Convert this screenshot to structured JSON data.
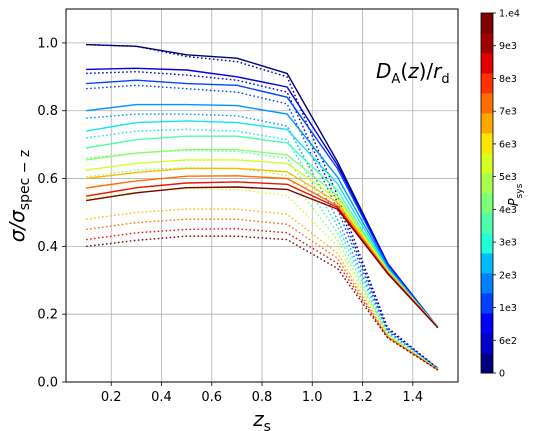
{
  "chart_data": {
    "type": "line",
    "annotation": "D_A(z)/r_d",
    "xlabel": "z_s",
    "ylabel": "σ/σ_spec − z",
    "xlim": [
      0.02,
      1.58
    ],
    "ylim": [
      0.0,
      1.1
    ],
    "xticks": [
      "0.2",
      "0.4",
      "0.6",
      "0.8",
      "1.0",
      "1.2",
      "1.4"
    ],
    "yticks": [
      "0.0",
      "0.2",
      "0.4",
      "0.6",
      "0.8",
      "1.0"
    ],
    "grid": true,
    "x": [
      0.1,
      0.3,
      0.5,
      0.7,
      0.9,
      1.1,
      1.3,
      1.5
    ],
    "colorbar": {
      "label": "P_sys",
      "ticks": [
        "0",
        "6e2",
        "1e3",
        "2e3",
        "3e3",
        "4e3",
        "5e3",
        "6e3",
        "7e3",
        "8e3",
        "9e3",
        "1.e4"
      ],
      "colors": [
        "#00007f",
        "#0000c8",
        "#0000ff",
        "#0040ff",
        "#0080ff",
        "#00bcff",
        "#20ffd7",
        "#4dffaa",
        "#7dff7a",
        "#aaff4d",
        "#d7ff20",
        "#ffe500",
        "#ffa800",
        "#ff6d00",
        "#ff3000",
        "#e30000",
        "#a00000",
        "#7f0000"
      ]
    },
    "series_solid": [
      {
        "color": "#00007f",
        "values": [
          0.995,
          0.99,
          0.965,
          0.955,
          0.91,
          0.65,
          0.35,
          0.16
        ]
      },
      {
        "color": "#0000d4",
        "values": [
          0.922,
          0.925,
          0.92,
          0.9,
          0.87,
          0.64,
          0.35,
          0.16
        ]
      },
      {
        "color": "#0044ff",
        "values": [
          0.88,
          0.89,
          0.88,
          0.875,
          0.84,
          0.63,
          0.345,
          0.16
        ]
      },
      {
        "color": "#0094ff",
        "values": [
          0.8,
          0.818,
          0.818,
          0.815,
          0.79,
          0.605,
          0.34,
          0.16
        ]
      },
      {
        "color": "#18e1ee",
        "values": [
          0.74,
          0.765,
          0.77,
          0.765,
          0.745,
          0.585,
          0.335,
          0.16
        ]
      },
      {
        "color": "#4dffaa",
        "values": [
          0.69,
          0.715,
          0.725,
          0.725,
          0.705,
          0.565,
          0.33,
          0.16
        ]
      },
      {
        "color": "#8cff6b",
        "values": [
          0.655,
          0.675,
          0.685,
          0.685,
          0.67,
          0.55,
          0.33,
          0.16
        ]
      },
      {
        "color": "#d0ff27",
        "values": [
          0.625,
          0.645,
          0.655,
          0.655,
          0.645,
          0.54,
          0.33,
          0.16
        ]
      },
      {
        "color": "#ffb900",
        "values": [
          0.6,
          0.618,
          0.63,
          0.63,
          0.62,
          0.53,
          0.325,
          0.16
        ]
      },
      {
        "color": "#ff6d00",
        "values": [
          0.572,
          0.593,
          0.607,
          0.608,
          0.6,
          0.52,
          0.325,
          0.16
        ]
      },
      {
        "color": "#e61400",
        "values": [
          0.548,
          0.573,
          0.587,
          0.59,
          0.583,
          0.515,
          0.32,
          0.16
        ]
      },
      {
        "color": "#7f0000",
        "values": [
          0.535,
          0.558,
          0.573,
          0.575,
          0.568,
          0.51,
          0.32,
          0.16
        ]
      }
    ],
    "series_dotted": [
      {
        "color": "#00007f",
        "values": [
          0.995,
          0.99,
          0.96,
          0.945,
          0.9,
          0.55,
          0.16,
          0.04
        ]
      },
      {
        "color": "#0000d4",
        "values": [
          0.91,
          0.915,
          0.905,
          0.89,
          0.855,
          0.53,
          0.155,
          0.04
        ]
      },
      {
        "color": "#0044ff",
        "values": [
          0.865,
          0.875,
          0.865,
          0.855,
          0.82,
          0.51,
          0.15,
          0.04
        ]
      },
      {
        "color": "#0094ff",
        "values": [
          0.778,
          0.79,
          0.79,
          0.785,
          0.755,
          0.48,
          0.148,
          0.04
        ]
      },
      {
        "color": "#18e1ee",
        "values": [
          0.72,
          0.74,
          0.745,
          0.74,
          0.715,
          0.46,
          0.145,
          0.038
        ]
      },
      {
        "color": "#4dffaa",
        "values": [
          0.66,
          0.675,
          0.683,
          0.68,
          0.66,
          0.44,
          0.14,
          0.038
        ]
      },
      {
        "color": "#8cff6b",
        "values": [
          0.605,
          0.625,
          0.632,
          0.63,
          0.61,
          0.42,
          0.14,
          0.037
        ]
      },
      {
        "color": "#d0ff27",
        "values": [
          0.54,
          0.56,
          0.57,
          0.568,
          0.55,
          0.4,
          0.138,
          0.037
        ]
      },
      {
        "color": "#ffb900",
        "values": [
          0.48,
          0.5,
          0.51,
          0.51,
          0.495,
          0.38,
          0.135,
          0.036
        ]
      },
      {
        "color": "#ff6d00",
        "values": [
          0.45,
          0.47,
          0.48,
          0.48,
          0.465,
          0.365,
          0.133,
          0.036
        ]
      },
      {
        "color": "#e61400",
        "values": [
          0.42,
          0.44,
          0.45,
          0.452,
          0.44,
          0.35,
          0.132,
          0.035
        ]
      },
      {
        "color": "#7f0000",
        "values": [
          0.4,
          0.418,
          0.43,
          0.43,
          0.42,
          0.335,
          0.13,
          0.035
        ]
      }
    ]
  }
}
